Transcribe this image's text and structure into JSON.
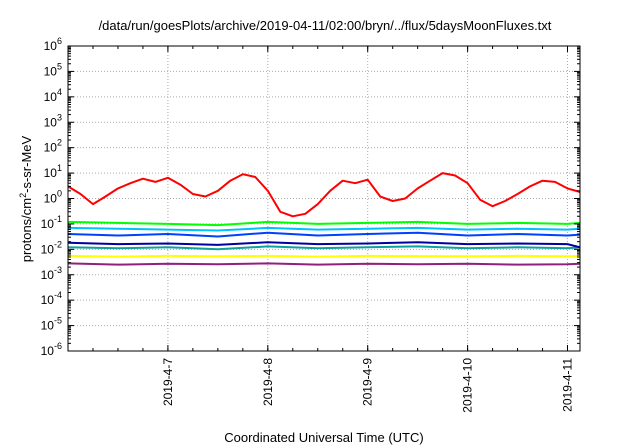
{
  "chart_data": {
    "type": "line",
    "title": "/data/run/goesPlots/archive/2019-04-11/02:00/bryn/../flux/5daysMoonFluxes.txt",
    "xlabel": "Coordinated Universal Time (UTC)",
    "ylabel": "protons/cm2-s-sr-MeV",
    "ylabel_parts": {
      "pre": "protons/cm",
      "sup": "2",
      "post": "-s-sr-MeV"
    },
    "yscale": "log",
    "ylim": [
      1e-06,
      1000000.0
    ],
    "xlim": [
      "2019-04-06T00:00",
      "2019-04-11T03:00"
    ],
    "grid": true,
    "yticks": [
      {
        "value": 1e-06,
        "base": "10",
        "exp": "-6"
      },
      {
        "value": 1e-05,
        "base": "10",
        "exp": "-5"
      },
      {
        "value": 0.0001,
        "base": "10",
        "exp": "-4"
      },
      {
        "value": 0.001,
        "base": "10",
        "exp": "-3"
      },
      {
        "value": 0.01,
        "base": "10",
        "exp": "-2"
      },
      {
        "value": 0.1,
        "base": "10",
        "exp": "-1"
      },
      {
        "value": 1.0,
        "base": "10",
        "exp": "0"
      },
      {
        "value": 10.0,
        "base": "10",
        "exp": "1"
      },
      {
        "value": 100.0,
        "base": "10",
        "exp": "2"
      },
      {
        "value": 1000.0,
        "base": "10",
        "exp": "3"
      },
      {
        "value": 10000.0,
        "base": "10",
        "exp": "4"
      },
      {
        "value": 100000.0,
        "base": "10",
        "exp": "5"
      },
      {
        "value": 1000000.0,
        "base": "10",
        "exp": "6"
      }
    ],
    "xticks": [
      {
        "value": "2019-04-07T00:00",
        "label": "2019-4-7"
      },
      {
        "value": "2019-04-08T00:00",
        "label": "2019-4-8"
      },
      {
        "value": "2019-04-09T00:00",
        "label": "2019-4-9"
      },
      {
        "value": "2019-04-10T00:00",
        "label": "2019-4-10"
      },
      {
        "value": "2019-04-11T00:00",
        "label": "2019-4-11"
      }
    ],
    "series": [
      {
        "color": "#ff0000",
        "x": [
          "2019-04-06T00:00",
          "2019-04-06T03:00",
          "2019-04-06T06:00",
          "2019-04-06T09:00",
          "2019-04-06T12:00",
          "2019-04-06T15:00",
          "2019-04-06T18:00",
          "2019-04-06T21:00",
          "2019-04-07T00:00",
          "2019-04-07T03:00",
          "2019-04-07T06:00",
          "2019-04-07T09:00",
          "2019-04-07T12:00",
          "2019-04-07T15:00",
          "2019-04-07T18:00",
          "2019-04-07T21:00",
          "2019-04-08T00:00",
          "2019-04-08T03:00",
          "2019-04-08T06:00",
          "2019-04-08T09:00",
          "2019-04-08T12:00",
          "2019-04-08T15:00",
          "2019-04-08T18:00",
          "2019-04-08T21:00",
          "2019-04-09T00:00",
          "2019-04-09T03:00",
          "2019-04-09T06:00",
          "2019-04-09T09:00",
          "2019-04-09T12:00",
          "2019-04-09T15:00",
          "2019-04-09T18:00",
          "2019-04-09T21:00",
          "2019-04-10T00:00",
          "2019-04-10T03:00",
          "2019-04-10T06:00",
          "2019-04-10T09:00",
          "2019-04-10T12:00",
          "2019-04-10T15:00",
          "2019-04-10T18:00",
          "2019-04-10T21:00",
          "2019-04-11T00:00",
          "2019-04-11T03:00"
        ],
        "y": [
          3.0,
          1.5,
          0.6,
          1.2,
          2.5,
          4.0,
          6.0,
          4.5,
          6.5,
          3.5,
          1.5,
          1.2,
          2.0,
          5.0,
          9.0,
          7.0,
          2.0,
          0.3,
          0.2,
          0.25,
          0.6,
          2.0,
          5.0,
          4.0,
          5.5,
          1.2,
          0.8,
          1.0,
          2.5,
          5.0,
          10.0,
          8.0,
          4.0,
          0.9,
          0.5,
          0.8,
          1.5,
          3.0,
          5.0,
          4.5,
          2.5,
          1.8
        ]
      },
      {
        "color": "#00ff00",
        "x": [
          "2019-04-06T00:00",
          "2019-04-06T12:00",
          "2019-04-07T00:00",
          "2019-04-07T12:00",
          "2019-04-08T00:00",
          "2019-04-08T12:00",
          "2019-04-09T00:00",
          "2019-04-09T12:00",
          "2019-04-10T00:00",
          "2019-04-10T12:00",
          "2019-04-11T00:00",
          "2019-04-11T03:00"
        ],
        "y": [
          0.12,
          0.11,
          0.1,
          0.09,
          0.12,
          0.1,
          0.11,
          0.12,
          0.1,
          0.11,
          0.1,
          0.11
        ]
      },
      {
        "color": "#00c0ff",
        "x": [
          "2019-04-06T00:00",
          "2019-04-06T12:00",
          "2019-04-07T00:00",
          "2019-04-07T12:00",
          "2019-04-08T00:00",
          "2019-04-08T12:00",
          "2019-04-09T00:00",
          "2019-04-09T12:00",
          "2019-04-10T00:00",
          "2019-04-10T12:00",
          "2019-04-11T00:00",
          "2019-04-11T03:00"
        ],
        "y": [
          0.07,
          0.065,
          0.06,
          0.055,
          0.07,
          0.06,
          0.065,
          0.07,
          0.06,
          0.065,
          0.06,
          0.065
        ]
      },
      {
        "color": "#0040ff",
        "x": [
          "2019-04-06T00:00",
          "2019-04-06T12:00",
          "2019-04-07T00:00",
          "2019-04-07T12:00",
          "2019-04-08T00:00",
          "2019-04-08T12:00",
          "2019-04-09T00:00",
          "2019-04-09T12:00",
          "2019-04-10T00:00",
          "2019-04-10T12:00",
          "2019-04-11T00:00",
          "2019-04-11T03:00"
        ],
        "y": [
          0.04,
          0.035,
          0.04,
          0.032,
          0.045,
          0.035,
          0.04,
          0.045,
          0.035,
          0.04,
          0.035,
          0.038
        ]
      },
      {
        "color": "#10a0a0",
        "x": [
          "2019-04-06T00:00",
          "2019-04-06T12:00",
          "2019-04-07T00:00",
          "2019-04-07T12:00",
          "2019-04-08T00:00",
          "2019-04-08T12:00",
          "2019-04-09T00:00",
          "2019-04-09T12:00",
          "2019-04-10T00:00",
          "2019-04-10T12:00",
          "2019-04-11T00:00",
          "2019-04-11T03:00"
        ],
        "y": [
          0.012,
          0.011,
          0.012,
          0.01,
          0.013,
          0.011,
          0.012,
          0.013,
          0.011,
          0.012,
          0.011,
          0.012
        ]
      },
      {
        "color": "#0000a0",
        "x": [
          "2019-04-06T00:00",
          "2019-04-06T12:00",
          "2019-04-07T00:00",
          "2019-04-07T12:00",
          "2019-04-08T00:00",
          "2019-04-08T12:00",
          "2019-04-09T00:00",
          "2019-04-09T12:00",
          "2019-04-10T00:00",
          "2019-04-10T12:00",
          "2019-04-11T00:00",
          "2019-04-11T03:00"
        ],
        "y": [
          0.018,
          0.016,
          0.017,
          0.015,
          0.019,
          0.016,
          0.017,
          0.019,
          0.016,
          0.017,
          0.016,
          0.012
        ]
      },
      {
        "color": "#ffff00",
        "x": [
          "2019-04-06T00:00",
          "2019-04-06T12:00",
          "2019-04-07T00:00",
          "2019-04-07T12:00",
          "2019-04-08T00:00",
          "2019-04-08T12:00",
          "2019-04-09T00:00",
          "2019-04-09T12:00",
          "2019-04-10T00:00",
          "2019-04-10T12:00",
          "2019-04-11T00:00",
          "2019-04-11T03:00"
        ],
        "y": [
          0.0055,
          0.0052,
          0.0055,
          0.0053,
          0.0055,
          0.0052,
          0.0055,
          0.0054,
          0.0053,
          0.0055,
          0.0053,
          0.0054
        ]
      },
      {
        "color": "#902080",
        "x": [
          "2019-04-06T00:00",
          "2019-04-06T12:00",
          "2019-04-07T00:00",
          "2019-04-07T12:00",
          "2019-04-08T00:00",
          "2019-04-08T12:00",
          "2019-04-09T00:00",
          "2019-04-09T12:00",
          "2019-04-10T00:00",
          "2019-04-10T12:00",
          "2019-04-11T00:00",
          "2019-04-11T03:00"
        ],
        "y": [
          0.0028,
          0.0025,
          0.0027,
          0.0026,
          0.0028,
          0.0025,
          0.0027,
          0.0026,
          0.0027,
          0.0025,
          0.0026,
          0.0027
        ]
      }
    ]
  }
}
